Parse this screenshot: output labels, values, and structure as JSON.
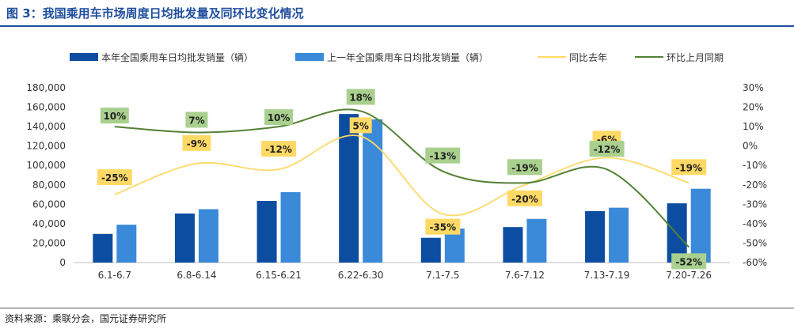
{
  "header": {
    "title": "图 3：我国乘用车市场周度日均批发量及同环比变化情况"
  },
  "footer": {
    "source": "资料来源：乘联分会，国元证券研究所"
  },
  "chart_data": {
    "type": "bar",
    "categories": [
      "6.1-6.7",
      "6.8-6.14",
      "6.15-6.21",
      "6.22-6.30",
      "7.1-7.5",
      "7.6-7.12",
      "7.13-7.19",
      "7.20-7.26"
    ],
    "y_left": {
      "min": 0,
      "max": 180000,
      "step": 20000
    },
    "y_right": {
      "min": -60,
      "max": 30,
      "step": 10,
      "unit": "%"
    },
    "series": [
      {
        "name": "本年全国乘用车日均批发销量（辆）",
        "kind": "bar",
        "axis": "left",
        "color": "#0c4da2",
        "values": [
          29500,
          50500,
          63500,
          153000,
          25500,
          36500,
          53000,
          61000
        ]
      },
      {
        "name": "上一年全国乘用车日均批发销量（辆）",
        "kind": "bar",
        "axis": "left",
        "color": "#3b8ad9",
        "values": [
          39000,
          55000,
          72500,
          147500,
          35000,
          45000,
          56500,
          76000
        ]
      },
      {
        "name": "同比去年",
        "kind": "line",
        "axis": "right",
        "color": "#ffd966",
        "values": [
          -25,
          -9,
          -12,
          5,
          -35,
          -20,
          -6,
          -19
        ],
        "labels": [
          "-25%",
          "-9%",
          "-12%",
          "5%",
          "-35%",
          "-20%",
          "-6%",
          "-19%"
        ],
        "label_bg": "#ffd966"
      },
      {
        "name": "环比上月同期",
        "kind": "line",
        "axis": "right",
        "color": "#548235",
        "values": [
          10,
          7,
          10,
          18,
          -13,
          -19,
          -12,
          -52
        ],
        "labels": [
          "10%",
          "7%",
          "10%",
          "18%",
          "-13%",
          "-19%",
          "-12%",
          "-52%"
        ],
        "label_bg": "#a9d08e"
      }
    ],
    "legend_position": "top",
    "grid": false
  }
}
